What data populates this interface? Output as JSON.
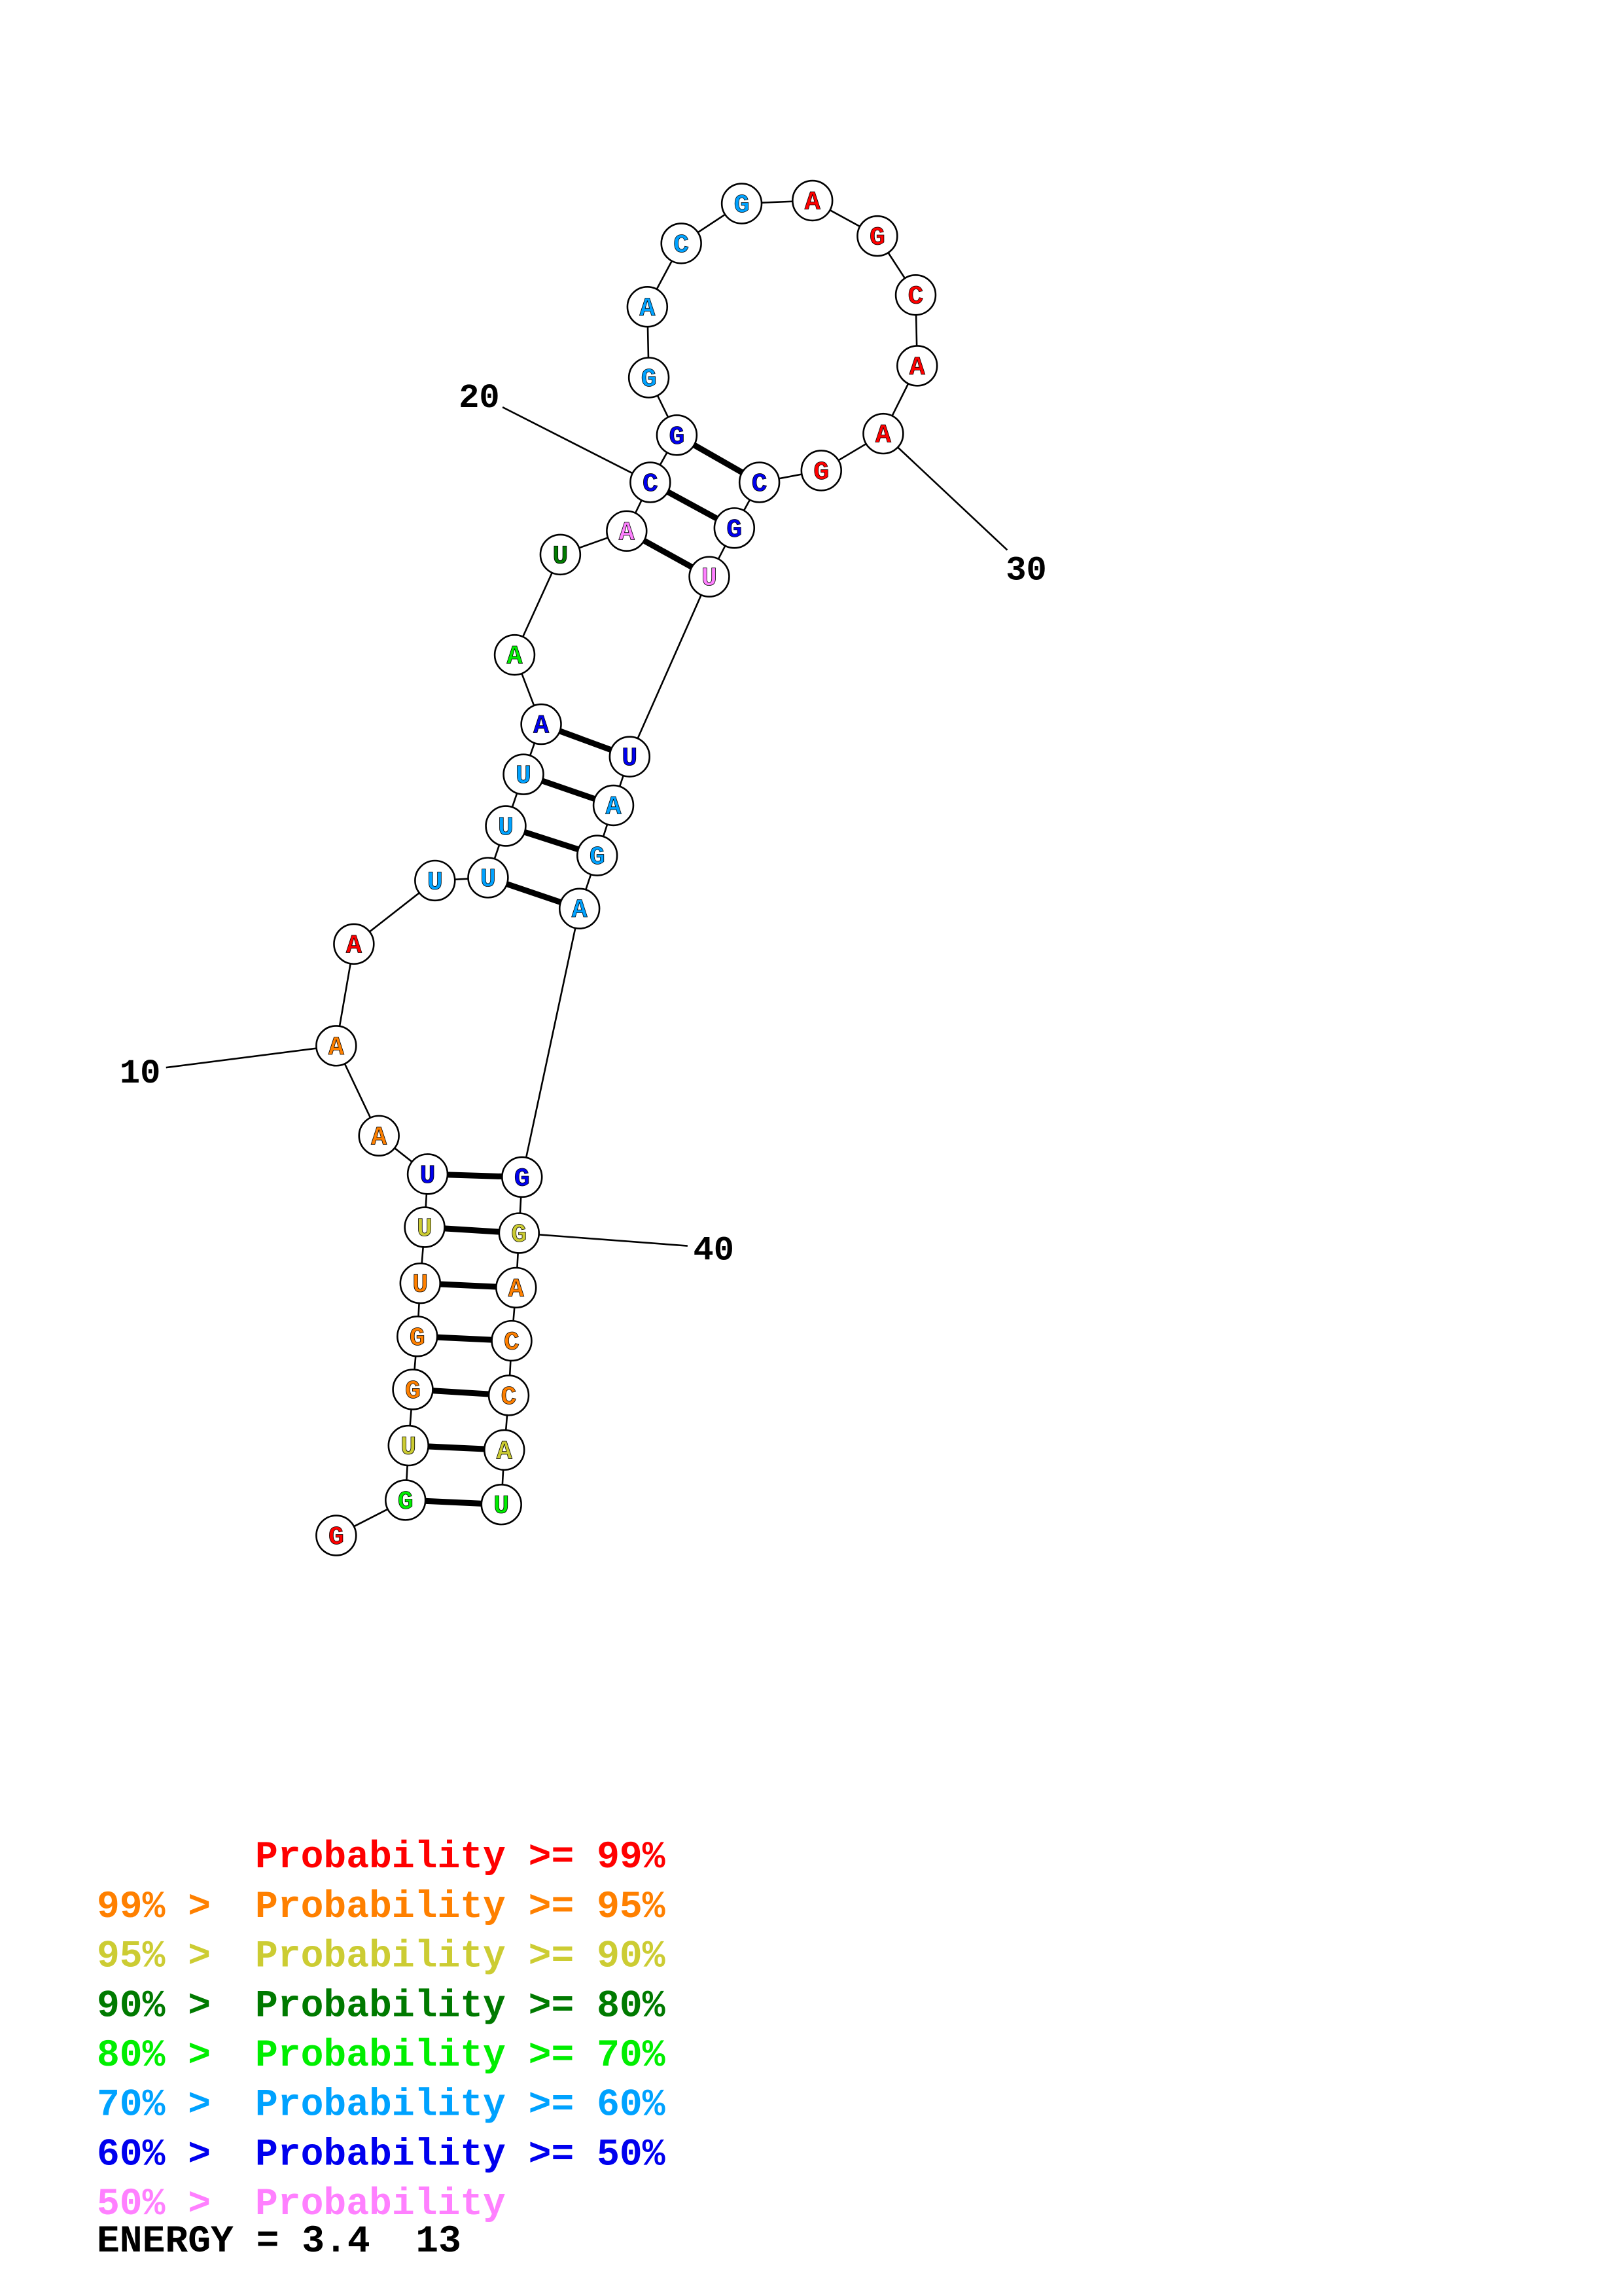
{
  "colors": {
    "red": "#ff0000",
    "orange": "#ff8000",
    "olive": "#cccc33",
    "darkgreen": "#007a00",
    "green": "#00ee00",
    "skyblue": "#00a2ff",
    "blue": "#0000ee",
    "pink": "#ff80ff"
  },
  "sequence": [
    {
      "n": 1,
      "base": "G",
      "color": "red"
    },
    {
      "n": 2,
      "base": "G",
      "color": "green"
    },
    {
      "n": 3,
      "base": "U",
      "color": "olive"
    },
    {
      "n": 4,
      "base": "G",
      "color": "orange"
    },
    {
      "n": 5,
      "base": "G",
      "color": "orange"
    },
    {
      "n": 6,
      "base": "U",
      "color": "orange"
    },
    {
      "n": 7,
      "base": "U",
      "color": "olive"
    },
    {
      "n": 8,
      "base": "U",
      "color": "blue"
    },
    {
      "n": 9,
      "base": "A",
      "color": "orange"
    },
    {
      "n": 10,
      "base": "A",
      "color": "orange"
    },
    {
      "n": 11,
      "base": "A",
      "color": "red"
    },
    {
      "n": 12,
      "base": "U",
      "color": "skyblue"
    },
    {
      "n": 13,
      "base": "U",
      "color": "skyblue"
    },
    {
      "n": 14,
      "base": "U",
      "color": "skyblue"
    },
    {
      "n": 15,
      "base": "U",
      "color": "skyblue"
    },
    {
      "n": 16,
      "base": "A",
      "color": "blue"
    },
    {
      "n": 17,
      "base": "A",
      "color": "green"
    },
    {
      "n": 18,
      "base": "U",
      "color": "darkgreen"
    },
    {
      "n": 19,
      "base": "A",
      "color": "pink"
    },
    {
      "n": 20,
      "base": "C",
      "color": "blue"
    },
    {
      "n": 21,
      "base": "G",
      "color": "blue"
    },
    {
      "n": 22,
      "base": "G",
      "color": "skyblue"
    },
    {
      "n": 23,
      "base": "A",
      "color": "skyblue"
    },
    {
      "n": 24,
      "base": "C",
      "color": "skyblue"
    },
    {
      "n": 25,
      "base": "G",
      "color": "skyblue"
    },
    {
      "n": 26,
      "base": "A",
      "color": "red"
    },
    {
      "n": 27,
      "base": "G",
      "color": "red"
    },
    {
      "n": 28,
      "base": "C",
      "color": "red"
    },
    {
      "n": 29,
      "base": "A",
      "color": "red"
    },
    {
      "n": 30,
      "base": "A",
      "color": "red"
    },
    {
      "n": 31,
      "base": "G",
      "color": "red"
    },
    {
      "n": 32,
      "base": "C",
      "color": "blue"
    },
    {
      "n": 33,
      "base": "G",
      "color": "blue"
    },
    {
      "n": 34,
      "base": "U",
      "color": "pink"
    },
    {
      "n": 35,
      "base": "U",
      "color": "blue"
    },
    {
      "n": 36,
      "base": "A",
      "color": "skyblue"
    },
    {
      "n": 37,
      "base": "G",
      "color": "skyblue"
    },
    {
      "n": 38,
      "base": "A",
      "color": "skyblue"
    },
    {
      "n": 39,
      "base": "G",
      "color": "blue"
    },
    {
      "n": 40,
      "base": "G",
      "color": "olive"
    },
    {
      "n": 41,
      "base": "A",
      "color": "orange"
    },
    {
      "n": 42,
      "base": "C",
      "color": "orange"
    },
    {
      "n": 43,
      "base": "C",
      "color": "orange"
    },
    {
      "n": 44,
      "base": "A",
      "color": "olive"
    },
    {
      "n": 45,
      "base": "U",
      "color": "green"
    }
  ],
  "pairs": [
    [
      2,
      45
    ],
    [
      3,
      44
    ],
    [
      4,
      43
    ],
    [
      5,
      42
    ],
    [
      6,
      41
    ],
    [
      7,
      40
    ],
    [
      8,
      39
    ],
    [
      13,
      38
    ],
    [
      14,
      37
    ],
    [
      15,
      36
    ],
    [
      16,
      35
    ],
    [
      19,
      34
    ],
    [
      20,
      33
    ],
    [
      21,
      32
    ]
  ],
  "position_labels": [
    {
      "n": 10,
      "text": "10"
    },
    {
      "n": 20,
      "text": "20"
    },
    {
      "n": 30,
      "text": "30"
    },
    {
      "n": 40,
      "text": "40"
    }
  ],
  "legend": [
    {
      "left": "",
      "right": "Probability >= 99%",
      "color": "red"
    },
    {
      "left": "99% > ",
      "right": "Probability >= 95%",
      "color": "orange"
    },
    {
      "left": "95% > ",
      "right": "Probability >= 90%",
      "color": "olive"
    },
    {
      "left": "90% > ",
      "right": "Probability >= 80%",
      "color": "darkgreen"
    },
    {
      "left": "80% > ",
      "right": "Probability >= 70%",
      "color": "green"
    },
    {
      "left": "70% > ",
      "right": "Probability >= 60%",
      "color": "skyblue"
    },
    {
      "left": "60% > ",
      "right": "Probability >= 50%",
      "color": "blue"
    },
    {
      "left": "50% > ",
      "right": "Probability",
      "color": "pink"
    }
  ],
  "energy_label": "ENERGY = 3.4  13"
}
